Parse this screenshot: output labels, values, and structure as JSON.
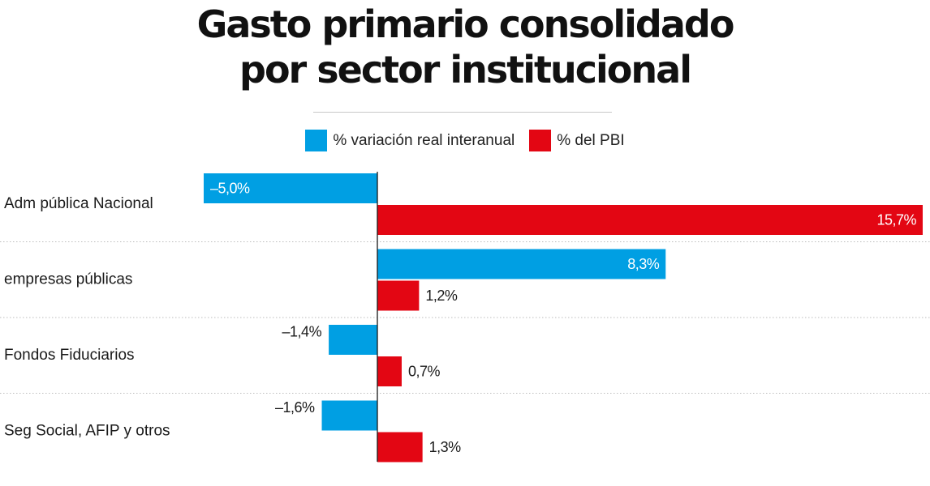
{
  "title_line1": "Gasto primario consolidado",
  "title_line2": "por sector institucional",
  "colors": {
    "variation": "#009fe3",
    "pbi": "#e30613"
  },
  "chart_data": {
    "type": "bar",
    "orientation": "horizontal",
    "legend_position": "top-center",
    "categories": [
      "Adm pública Nacional",
      "empresas públicas",
      "Fondos Fiduciarios",
      "Seg Social, AFIP y otros"
    ],
    "series": [
      {
        "name": "% variación real interanual",
        "values": [
          -5.0,
          8.3,
          -1.4,
          -1.6
        ],
        "labels": [
          "–5,0%",
          "8,3%",
          "–1,4%",
          "–1,6%"
        ]
      },
      {
        "name": "% del PBI",
        "values": [
          15.7,
          1.2,
          0.7,
          1.3
        ],
        "labels": [
          "15,7%",
          "1,2%",
          "0,7%",
          "1,3%"
        ]
      }
    ],
    "xlim": [
      -5.0,
      15.7
    ],
    "grid": false
  }
}
